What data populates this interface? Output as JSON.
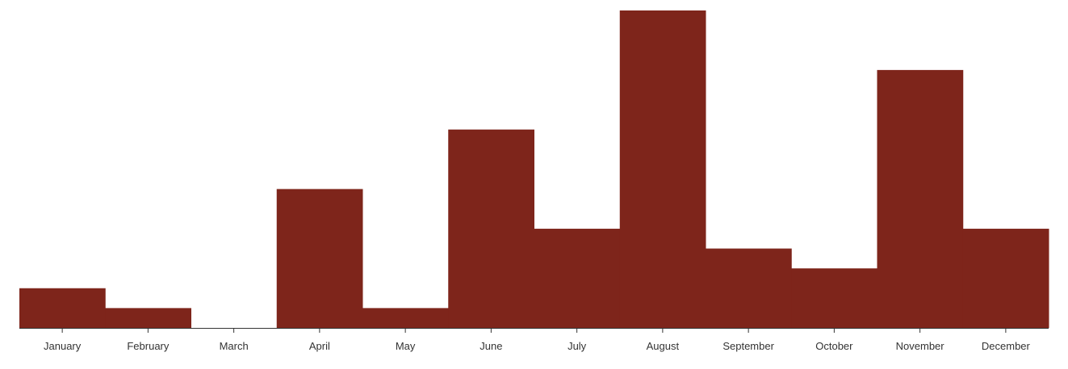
{
  "chart_data": {
    "type": "bar",
    "categories": [
      "January",
      "February",
      "March",
      "April",
      "May",
      "June",
      "July",
      "August",
      "September",
      "October",
      "November",
      "December"
    ],
    "values": [
      2,
      1,
      0,
      7,
      1,
      10,
      5,
      16,
      4,
      3,
      13,
      5
    ],
    "ylim": [
      0,
      16
    ],
    "grid": false,
    "legend": "none",
    "bar_color": "#7e251b",
    "axis_color": "#333333",
    "text_color": "#333333"
  }
}
